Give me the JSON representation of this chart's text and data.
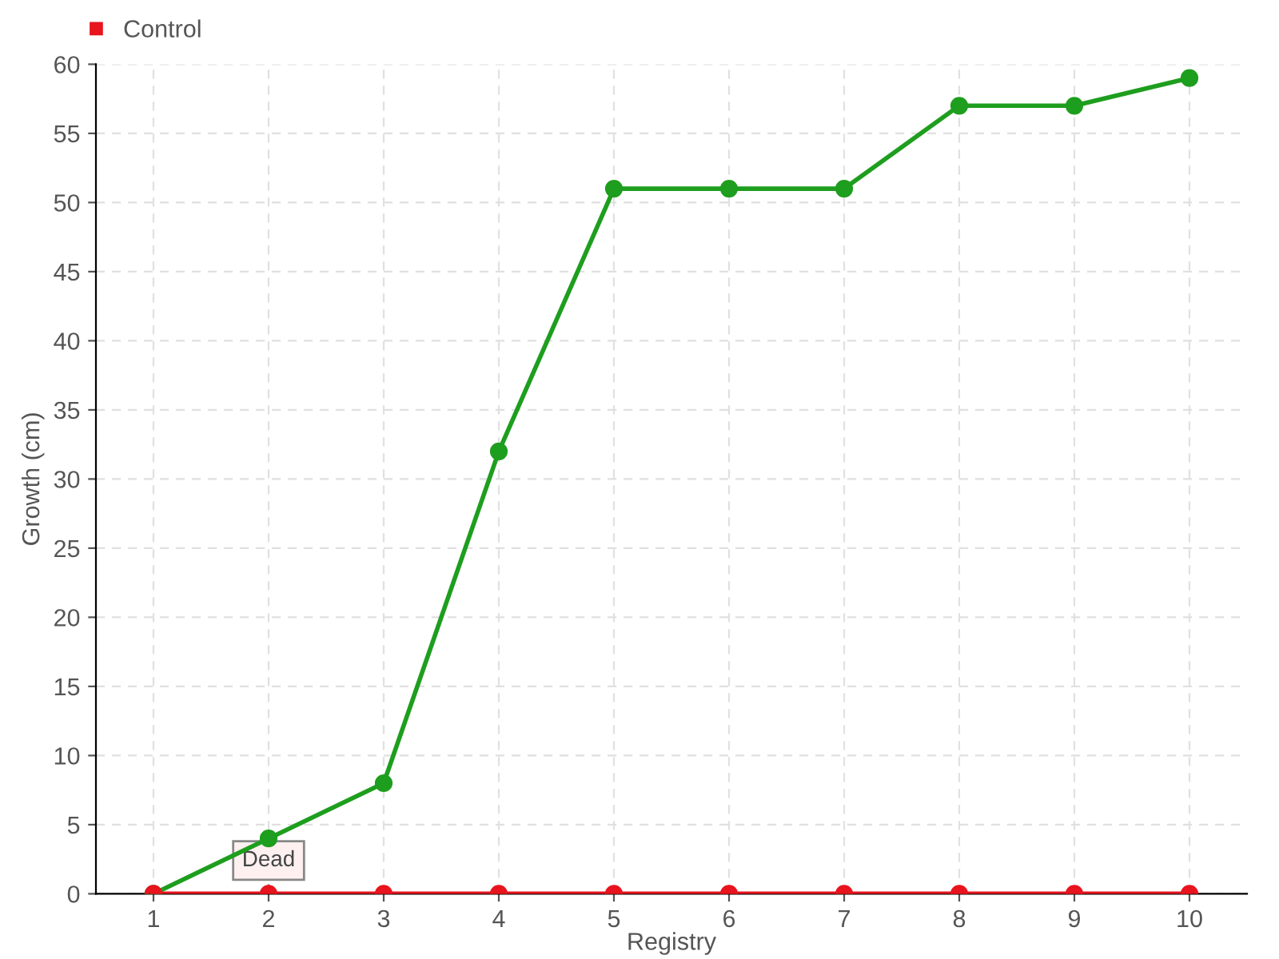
{
  "chart_data": {
    "type": "line",
    "xlabel": "Registry",
    "ylabel": "Growth (cm)",
    "categories": [
      "1",
      "2",
      "3",
      "4",
      "5",
      "6",
      "7",
      "8",
      "9",
      "10"
    ],
    "series": [
      {
        "color": "#1e9e1e",
        "values": [
          0,
          4,
          8,
          32,
          51,
          51,
          51,
          57,
          57,
          59
        ]
      },
      {
        "name": "Control",
        "color": "#e8141e",
        "values": [
          0,
          0,
          0,
          0,
          0,
          0,
          0,
          0,
          0,
          0
        ]
      }
    ],
    "ylim": [
      0,
      60
    ],
    "yticks": [
      0,
      5,
      10,
      15,
      20,
      25,
      30,
      35,
      40,
      45,
      50,
      55,
      60
    ],
    "grid": true,
    "legend": "top left",
    "marker": "circle",
    "line_style": "solid",
    "annotations": [
      {
        "text": "Dead",
        "x": "2",
        "y": 0
      }
    ]
  }
}
